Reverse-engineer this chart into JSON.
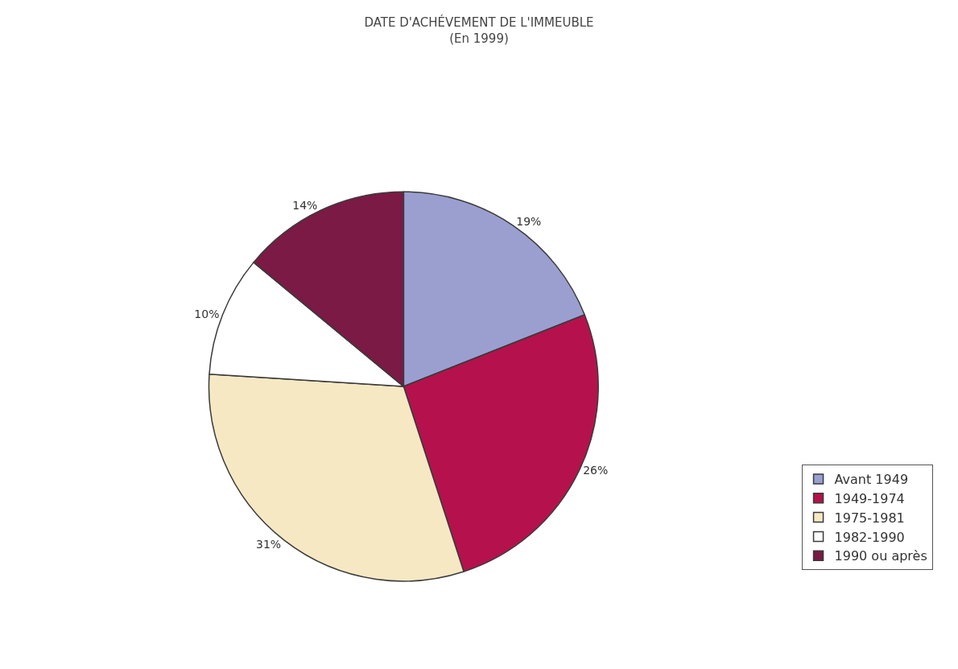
{
  "chart_data": {
    "type": "pie",
    "title": "DATE D'ACHÉVEMENT DE L'IMMEUBLE",
    "subtitle": "(En 1999)",
    "categories": [
      "Avant 1949",
      "1949-1974",
      "1975-1981",
      "1982-1990",
      "1990 ou après"
    ],
    "values": [
      19,
      26,
      31,
      10,
      14
    ],
    "value_labels": [
      "19%",
      "26%",
      "31%",
      "10%",
      "14%"
    ],
    "colors": [
      "#9a9fd0",
      "#b5124d",
      "#f6e8c3",
      "#ffffff",
      "#7a1a45"
    ],
    "legend": "bottom right"
  }
}
